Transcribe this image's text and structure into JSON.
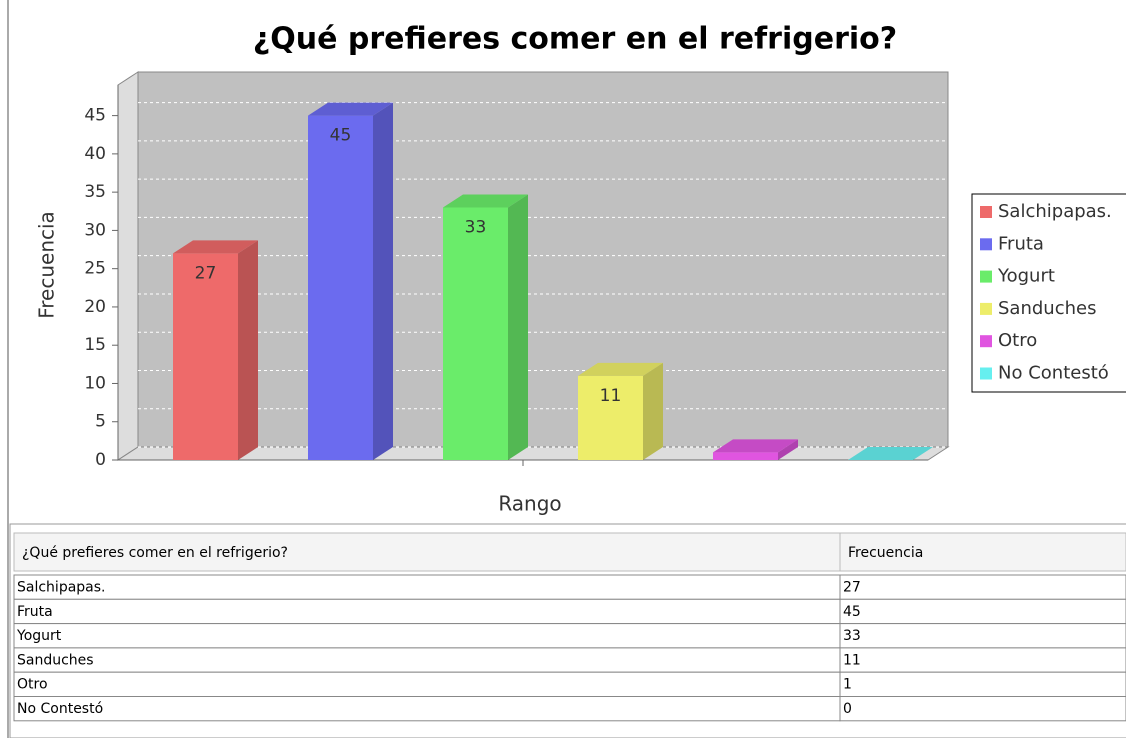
{
  "chart_data": {
    "type": "bar3d",
    "title": "¿Qué prefieres comer en el refrigerio?",
    "xlabel": "Rango",
    "ylabel": "Frecuencia",
    "categories": [
      "Salchipapas.",
      "Fruta",
      "Yogurt",
      "Sanduches",
      "Otro",
      "No Contestó"
    ],
    "values": [
      27,
      45,
      33,
      11,
      1,
      0
    ],
    "colors": [
      "#ee6a6a",
      "#6b6bef",
      "#6aec6a",
      "#eded6a",
      "#e055e0",
      "#66efef"
    ],
    "ylim": [
      0,
      49
    ],
    "yticks": [
      0,
      5,
      10,
      15,
      20,
      25,
      30,
      35,
      40,
      45
    ],
    "grid": true,
    "legend": "right"
  },
  "table": {
    "header": [
      "¿Qué prefieres comer en el refrigerio?",
      "Frecuencia"
    ],
    "rows": [
      [
        "Salchipapas.",
        27
      ],
      [
        "Fruta",
        45
      ],
      [
        "Yogurt",
        33
      ],
      [
        "Sanduches",
        11
      ],
      [
        "Otro",
        1
      ],
      [
        "No Contestó",
        0
      ]
    ]
  }
}
